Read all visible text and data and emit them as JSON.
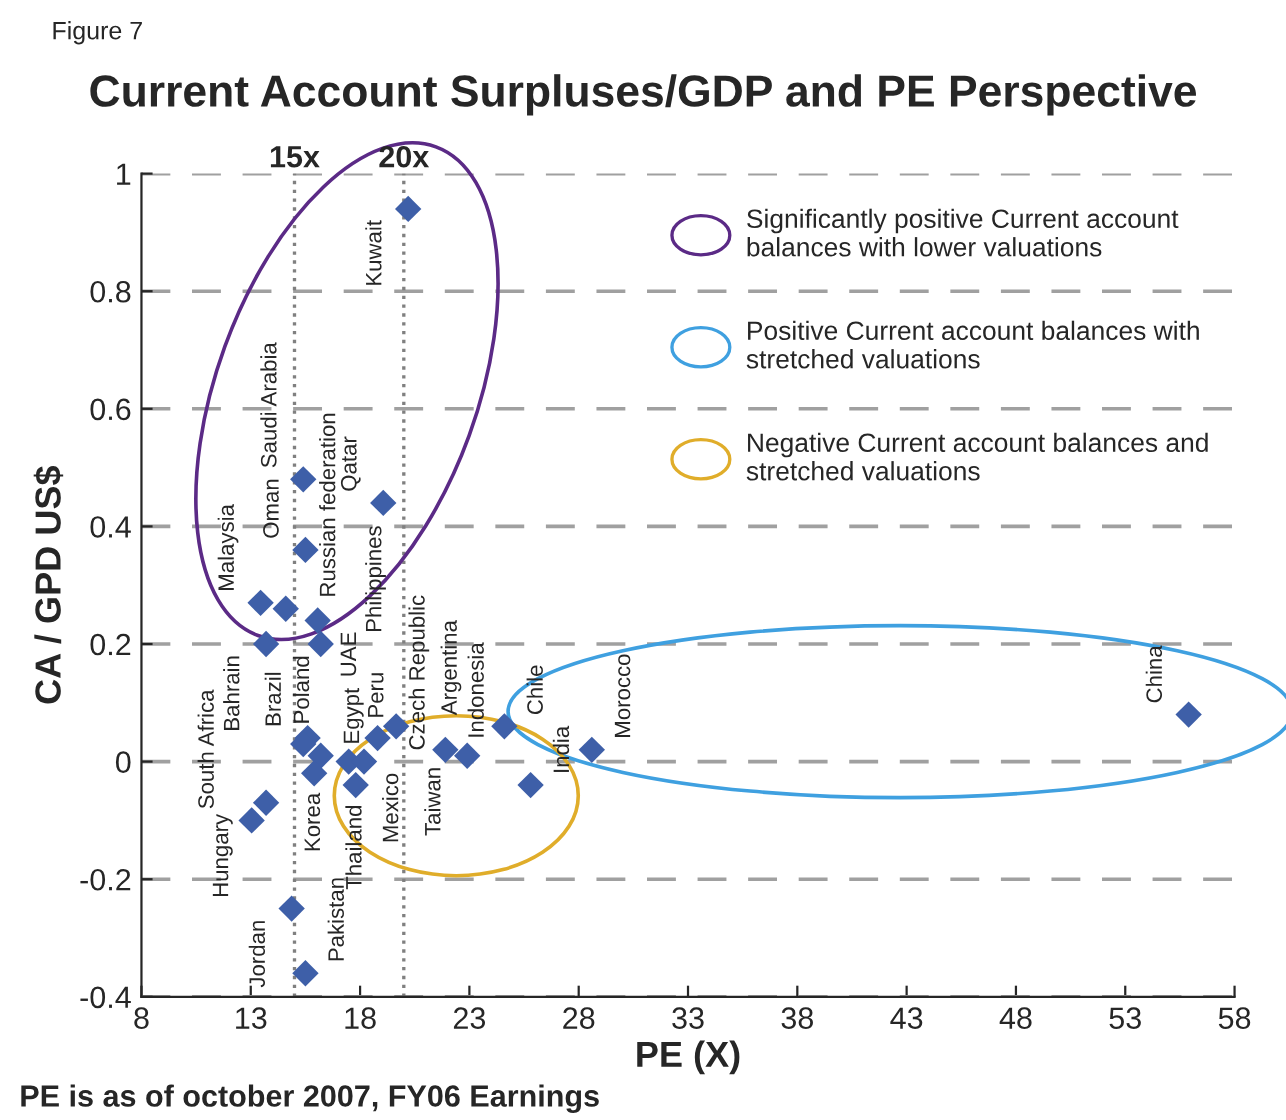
{
  "chart_data": {
    "type": "scatter",
    "title": "Current Account Surpluses/GDP and PE Perspective",
    "xlabel": "PE (X)",
    "ylabel": "CA / GPD US$",
    "series": [
      {
        "color": "#3e5fa8",
        "x": [
          20.2,
          15.4,
          15.5,
          19.06,
          13.45,
          13.7,
          14.6,
          16.06,
          16.2,
          15.6,
          15.4,
          16.2,
          15.9,
          13.7,
          13.04,
          14.87,
          15.5,
          17.48,
          17.8,
          18.18,
          18.8,
          19.65,
          21.9,
          22.9,
          24.6,
          25.8,
          28.6,
          55.9
        ],
        "values": [
          0.94,
          0.48,
          0.36,
          0.44,
          0.27,
          0.2,
          0.26,
          0.24,
          0.2,
          0.04,
          0.03,
          0.01,
          -0.02,
          -0.07,
          -0.1,
          -0.25,
          -0.36,
          0.0,
          -0.04,
          0.0,
          0.04,
          0.06,
          0.02,
          0.01,
          0.06,
          -0.04,
          0.02,
          0.08
        ]
      }
    ],
    "marker": "diamond",
    "xlim": [
      8,
      58
    ],
    "xticks": [
      8,
      13,
      18,
      23,
      28,
      33,
      38,
      43,
      48,
      53,
      58
    ],
    "ylim": [
      -0.4,
      1
    ],
    "yticks": [
      -0.4,
      -0.2,
      0,
      0.2,
      0.4,
      0.6,
      0.8,
      1
    ],
    "grid": "y",
    "ref_lines": [
      {
        "axis": "x",
        "value": 15,
        "label": "15x",
        "line_style": "dotted",
        "color": "#808080"
      },
      {
        "axis": "x",
        "value": 20,
        "label": "20x",
        "line_style": "dotted",
        "color": "#808080"
      }
    ],
    "annotations": [
      "Figure 7",
      "Significantly positive Current account balances with lower valuations",
      "Positive Current account balances with stretched valuations",
      "Negative Current account balances and stretched valuations",
      "PE is as of october 2007, FY06 Earnings",
      {
        "text": "Kuwait",
        "x": 20.2,
        "y": 0.94
      },
      {
        "text": "Saudi Arabia",
        "x": 15.4,
        "y": 0.48
      },
      {
        "text": "Oman",
        "x": 15.5,
        "y": 0.36
      },
      {
        "text": "Qatar",
        "x": 19.06,
        "y": 0.44
      },
      {
        "text": "Malaysia",
        "x": 13.45,
        "y": 0.27
      },
      {
        "text": "Bahrain",
        "x": 13.7,
        "y": 0.2
      },
      {
        "text": "Russian federation",
        "x": 14.6,
        "y": 0.26
      },
      {
        "text": "UAE",
        "x": 16.06,
        "y": 0.24
      },
      {
        "text": "Philippines",
        "x": 16.2,
        "y": 0.2
      },
      {
        "text": "Brazil",
        "x": 15.6,
        "y": 0.04
      },
      {
        "text": "Poland",
        "x": 15.4,
        "y": 0.03
      },
      {
        "text": "Egypt",
        "x": 16.2,
        "y": 0.01
      },
      {
        "text": "Korea",
        "x": 15.9,
        "y": -0.02
      },
      {
        "text": "Hungary",
        "x": 13.7,
        "y": -0.07
      },
      {
        "text": "South Africa",
        "x": 13.04,
        "y": -0.1
      },
      {
        "text": "Jordan",
        "x": 14.87,
        "y": -0.25
      },
      {
        "text": "Pakistan",
        "x": 15.5,
        "y": -0.36
      },
      {
        "text": "Mexico",
        "x": 17.48,
        "y": 0.0
      },
      {
        "text": "Thailand",
        "x": 17.8,
        "y": -0.04
      },
      {
        "text": "Czech Republic",
        "x": 18.18,
        "y": 0.0
      },
      {
        "text": "Peru",
        "x": 18.8,
        "y": 0.04
      },
      {
        "text": "Argentina",
        "x": 19.65,
        "y": 0.06
      },
      {
        "text": "Indonesia",
        "x": 21.9,
        "y": 0.02
      },
      {
        "text": "Taiwan",
        "x": 22.9,
        "y": 0.01
      },
      {
        "text": "Chile",
        "x": 24.6,
        "y": 0.06
      },
      {
        "text": "India",
        "x": 25.8,
        "y": -0.04
      },
      {
        "text": "Morocco",
        "x": 28.6,
        "y": 0.02
      },
      {
        "text": "China",
        "x": 55.9,
        "y": 0.08
      }
    ]
  }
}
